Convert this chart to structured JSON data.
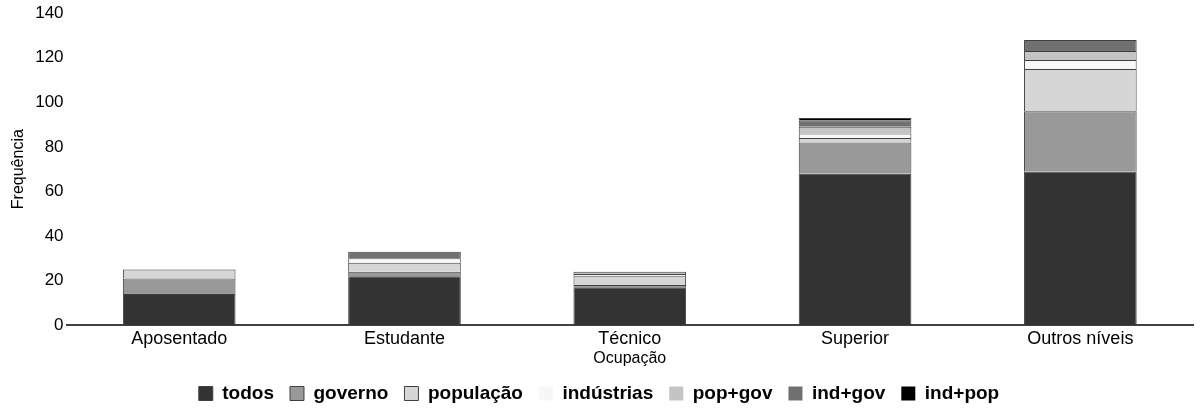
{
  "chart_data": {
    "type": "bar",
    "stacked": true,
    "xlabel": "Ocupação",
    "ylabel": "Frequência",
    "categories": [
      "Aposentado",
      "Estudante",
      "Técnico",
      "Superior",
      "Outros níveis"
    ],
    "series": [
      {
        "name": "todos",
        "color": "#333333",
        "values": [
          14,
          22,
          17,
          68,
          69
        ]
      },
      {
        "name": "governo",
        "color": "#999999",
        "values": [
          7,
          2,
          1,
          14,
          27
        ]
      },
      {
        "name": "população",
        "color": "#d6d6d6",
        "values": [
          4,
          4,
          4,
          2,
          19
        ]
      },
      {
        "name": "indústrias",
        "color": "#f7f7f7",
        "values": [
          0,
          2,
          1,
          2,
          4
        ]
      },
      {
        "name": "pop+gov",
        "color": "#c4c4c4",
        "values": [
          0,
          0,
          1,
          3,
          4
        ]
      },
      {
        "name": "ind+gov",
        "color": "#707070",
        "values": [
          0,
          3,
          0,
          3,
          5
        ]
      },
      {
        "name": "ind+pop",
        "color": "#000000",
        "values": [
          0,
          0,
          0,
          1,
          0
        ]
      }
    ],
    "ylim": [
      0,
      140
    ],
    "yticks": [
      0,
      20,
      40,
      60,
      80,
      100,
      120,
      140
    ],
    "grid": false,
    "legend": "bottom"
  }
}
